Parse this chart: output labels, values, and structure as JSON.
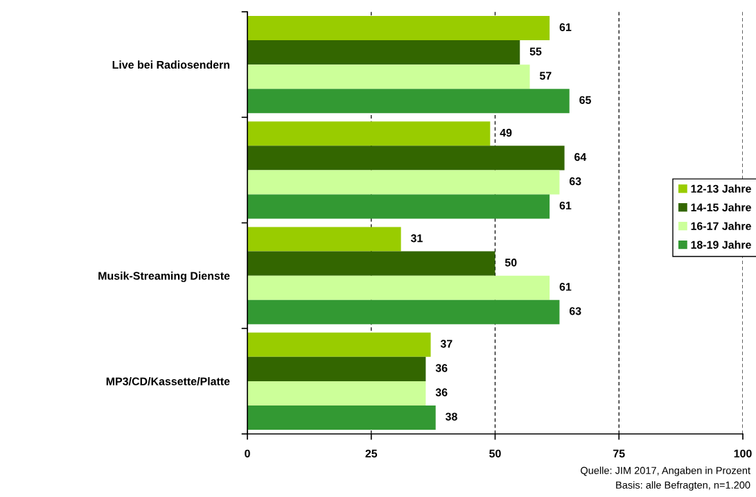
{
  "chart_data": {
    "type": "bar",
    "orientation": "horizontal",
    "categories": [
      "Live bei Radiosendern",
      null,
      "Musik-Streaming Dienste",
      "MP3/CD/Kassette/Platte"
    ],
    "series": [
      {
        "name": "12-13 Jahre",
        "color": "#99cc00",
        "values": [
          61,
          49,
          31,
          37
        ]
      },
      {
        "name": "14-15 Jahre",
        "color": "#336600",
        "values": [
          55,
          64,
          50,
          36
        ]
      },
      {
        "name": "16-17 Jahre",
        "color": "#ccff99",
        "values": [
          57,
          63,
          61,
          36
        ]
      },
      {
        "name": "18-19 Jahre",
        "color": "#339933",
        "values": [
          65,
          61,
          63,
          38
        ]
      }
    ],
    "xlim": [
      0,
      100
    ],
    "xticks": [
      0,
      25,
      50,
      75,
      100
    ],
    "grid": "x",
    "legend": "right",
    "data_labels": true,
    "annotations": [
      "Quelle: JIM 2017, Angaben in Prozent",
      "Basis: alle Befragten, n=1.200"
    ]
  }
}
